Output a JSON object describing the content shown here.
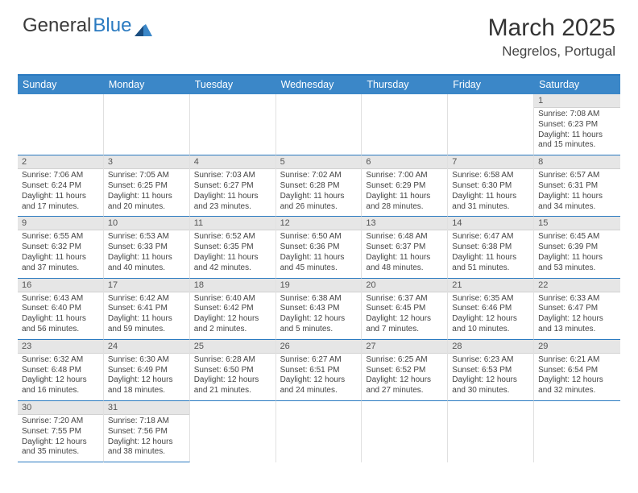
{
  "brand": {
    "part1": "General",
    "part2": "Blue"
  },
  "title": "March 2025",
  "location": "Negrelos, Portugal",
  "colors": {
    "header_bg": "#3b87c8",
    "border": "#2a7ac0",
    "daynum_bg": "#e6e6e6",
    "text": "#444444"
  },
  "typography": {
    "title_fontsize": 30,
    "location_fontsize": 17,
    "header_fontsize": 12.5,
    "daynum_fontsize": 11,
    "info_fontsize": 10
  },
  "layout": {
    "columns": 7,
    "rows": 6,
    "leading_empty": 6
  },
  "weekdays": [
    "Sunday",
    "Monday",
    "Tuesday",
    "Wednesday",
    "Thursday",
    "Friday",
    "Saturday"
  ],
  "days": [
    {
      "n": 1,
      "sunrise": "7:08 AM",
      "sunset": "6:23 PM",
      "daylight": "11 hours and 15 minutes."
    },
    {
      "n": 2,
      "sunrise": "7:06 AM",
      "sunset": "6:24 PM",
      "daylight": "11 hours and 17 minutes."
    },
    {
      "n": 3,
      "sunrise": "7:05 AM",
      "sunset": "6:25 PM",
      "daylight": "11 hours and 20 minutes."
    },
    {
      "n": 4,
      "sunrise": "7:03 AM",
      "sunset": "6:27 PM",
      "daylight": "11 hours and 23 minutes."
    },
    {
      "n": 5,
      "sunrise": "7:02 AM",
      "sunset": "6:28 PM",
      "daylight": "11 hours and 26 minutes."
    },
    {
      "n": 6,
      "sunrise": "7:00 AM",
      "sunset": "6:29 PM",
      "daylight": "11 hours and 28 minutes."
    },
    {
      "n": 7,
      "sunrise": "6:58 AM",
      "sunset": "6:30 PM",
      "daylight": "11 hours and 31 minutes."
    },
    {
      "n": 8,
      "sunrise": "6:57 AM",
      "sunset": "6:31 PM",
      "daylight": "11 hours and 34 minutes."
    },
    {
      "n": 9,
      "sunrise": "6:55 AM",
      "sunset": "6:32 PM",
      "daylight": "11 hours and 37 minutes."
    },
    {
      "n": 10,
      "sunrise": "6:53 AM",
      "sunset": "6:33 PM",
      "daylight": "11 hours and 40 minutes."
    },
    {
      "n": 11,
      "sunrise": "6:52 AM",
      "sunset": "6:35 PM",
      "daylight": "11 hours and 42 minutes."
    },
    {
      "n": 12,
      "sunrise": "6:50 AM",
      "sunset": "6:36 PM",
      "daylight": "11 hours and 45 minutes."
    },
    {
      "n": 13,
      "sunrise": "6:48 AM",
      "sunset": "6:37 PM",
      "daylight": "11 hours and 48 minutes."
    },
    {
      "n": 14,
      "sunrise": "6:47 AM",
      "sunset": "6:38 PM",
      "daylight": "11 hours and 51 minutes."
    },
    {
      "n": 15,
      "sunrise": "6:45 AM",
      "sunset": "6:39 PM",
      "daylight": "11 hours and 53 minutes."
    },
    {
      "n": 16,
      "sunrise": "6:43 AM",
      "sunset": "6:40 PM",
      "daylight": "11 hours and 56 minutes."
    },
    {
      "n": 17,
      "sunrise": "6:42 AM",
      "sunset": "6:41 PM",
      "daylight": "11 hours and 59 minutes."
    },
    {
      "n": 18,
      "sunrise": "6:40 AM",
      "sunset": "6:42 PM",
      "daylight": "12 hours and 2 minutes."
    },
    {
      "n": 19,
      "sunrise": "6:38 AM",
      "sunset": "6:43 PM",
      "daylight": "12 hours and 5 minutes."
    },
    {
      "n": 20,
      "sunrise": "6:37 AM",
      "sunset": "6:45 PM",
      "daylight": "12 hours and 7 minutes."
    },
    {
      "n": 21,
      "sunrise": "6:35 AM",
      "sunset": "6:46 PM",
      "daylight": "12 hours and 10 minutes."
    },
    {
      "n": 22,
      "sunrise": "6:33 AM",
      "sunset": "6:47 PM",
      "daylight": "12 hours and 13 minutes."
    },
    {
      "n": 23,
      "sunrise": "6:32 AM",
      "sunset": "6:48 PM",
      "daylight": "12 hours and 16 minutes."
    },
    {
      "n": 24,
      "sunrise": "6:30 AM",
      "sunset": "6:49 PM",
      "daylight": "12 hours and 18 minutes."
    },
    {
      "n": 25,
      "sunrise": "6:28 AM",
      "sunset": "6:50 PM",
      "daylight": "12 hours and 21 minutes."
    },
    {
      "n": 26,
      "sunrise": "6:27 AM",
      "sunset": "6:51 PM",
      "daylight": "12 hours and 24 minutes."
    },
    {
      "n": 27,
      "sunrise": "6:25 AM",
      "sunset": "6:52 PM",
      "daylight": "12 hours and 27 minutes."
    },
    {
      "n": 28,
      "sunrise": "6:23 AM",
      "sunset": "6:53 PM",
      "daylight": "12 hours and 30 minutes."
    },
    {
      "n": 29,
      "sunrise": "6:21 AM",
      "sunset": "6:54 PM",
      "daylight": "12 hours and 32 minutes."
    },
    {
      "n": 30,
      "sunrise": "7:20 AM",
      "sunset": "7:55 PM",
      "daylight": "12 hours and 35 minutes."
    },
    {
      "n": 31,
      "sunrise": "7:18 AM",
      "sunset": "7:56 PM",
      "daylight": "12 hours and 38 minutes."
    }
  ],
  "labels": {
    "sunrise_prefix": "Sunrise: ",
    "sunset_prefix": "Sunset: ",
    "daylight_prefix": "Daylight: "
  }
}
